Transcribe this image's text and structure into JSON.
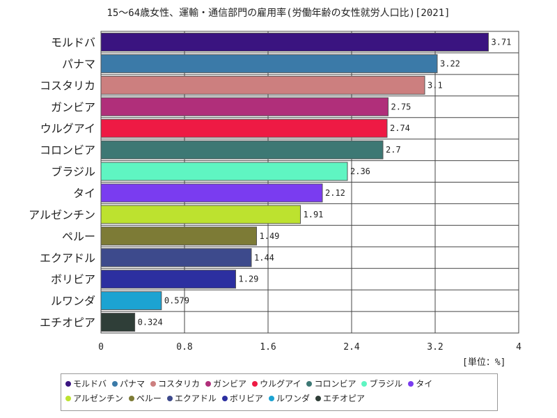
{
  "chart_data": {
    "type": "bar",
    "orientation": "horizontal",
    "title": "15～64歳女性、運輸・通信部門の雇用率(労働年齢の女性就労人口比)[2021]",
    "unit": "[単位：%]",
    "categories": [
      "モルドバ",
      "パナマ",
      "コスタリカ",
      "ガンビア",
      "ウルグアイ",
      "コロンビア",
      "ブラジル",
      "タイ",
      "アルゼンチン",
      "ペルー",
      "エクアドル",
      "ボリビア",
      "ルワンダ",
      "エチオピア"
    ],
    "values": [
      3.71,
      3.22,
      3.1,
      2.75,
      2.74,
      2.7,
      2.36,
      2.12,
      1.91,
      1.49,
      1.44,
      1.29,
      0.579,
      0.324
    ],
    "value_labels": [
      "3.71",
      "3.22",
      "3.1",
      "2.75",
      "2.74",
      "2.7",
      "2.36",
      "2.12",
      "1.91",
      "1.49",
      "1.44",
      "1.29",
      "0.579",
      "0.324"
    ],
    "colors": [
      "#3a1480",
      "#3b7aa8",
      "#cc7f7f",
      "#b02f7a",
      "#ee1a44",
      "#3d7874",
      "#5ff5c2",
      "#7a3cf0",
      "#bde22f",
      "#7d7b36",
      "#3d4a8c",
      "#2c2fa0",
      "#1ca3d2",
      "#2f3e38"
    ],
    "xlim": [
      0,
      4
    ],
    "xticks": [
      "0",
      "0.8",
      "1.6",
      "2.4",
      "3.2",
      "4"
    ],
    "xtick_values": [
      0,
      0.8,
      1.6,
      2.4,
      3.2,
      4
    ],
    "grid": true,
    "legend_position": "bottom"
  }
}
